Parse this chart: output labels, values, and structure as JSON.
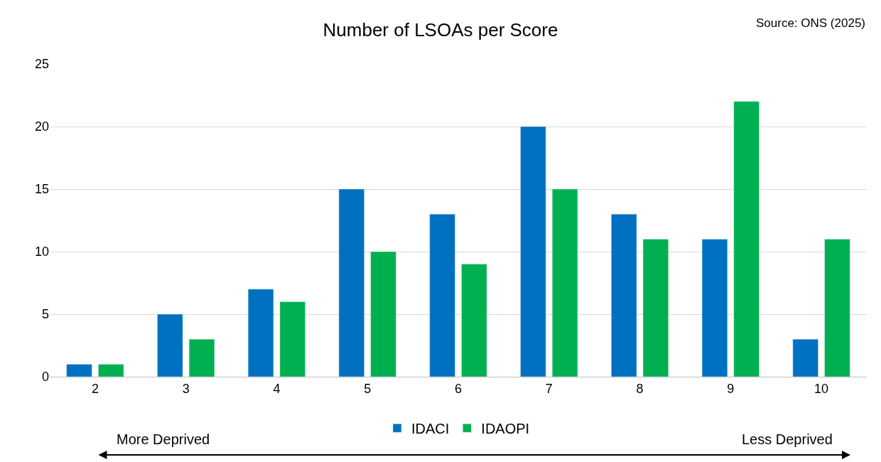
{
  "chart_data": {
    "type": "bar",
    "title": "Number of LSOAs per Score",
    "categories": [
      "2",
      "3",
      "4",
      "5",
      "6",
      "7",
      "8",
      "9",
      "10"
    ],
    "series": [
      {
        "name": "IDACI",
        "color": "#0070c0",
        "values": [
          1,
          5,
          7,
          15,
          13,
          20,
          13,
          11,
          3
        ]
      },
      {
        "name": "IDAOPI",
        "color": "#00b050",
        "values": [
          1,
          3,
          6,
          10,
          9,
          15,
          11,
          22,
          11
        ]
      }
    ],
    "ylim": [
      0,
      25
    ],
    "yticks": [
      0,
      5,
      10,
      15,
      20,
      25
    ],
    "grid": "y",
    "legend": "bottom",
    "annotations": [
      "Source: ONS (2025)",
      "More Deprived",
      "Less Deprived"
    ]
  }
}
